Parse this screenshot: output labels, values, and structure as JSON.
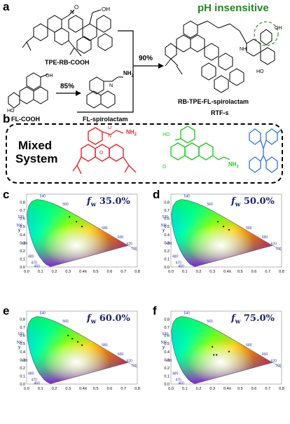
{
  "panels": {
    "a": "a",
    "b": "b",
    "c": "c",
    "d": "d",
    "e": "e",
    "f": "f"
  },
  "scheme": {
    "compound_tpe_rb": "TPE-RB-COOH",
    "compound_fl": "FL-COOH",
    "compound_fl_spiro": "FL-spirolactam",
    "product_name": "RB-TPE-FL-spirolactam",
    "product_short": "RTF-s",
    "yield_1": "85%",
    "yield_2": "90%",
    "ph_label": "pH insensitive",
    "nh2_label": "NH",
    "nh2_sub": "2",
    "oh_label": "OH",
    "nh_label": "NH"
  },
  "mixed": {
    "line1": "Mixed",
    "line2": "System",
    "nh2_red": "NH",
    "nh2_green": "NH",
    "sub": "2"
  },
  "cie": {
    "x_label": "x",
    "y_label": "y",
    "x_ticks": [
      "0.0",
      "0.1",
      "0.2",
      "0.3",
      "0.4",
      "0.5",
      "0.6",
      "0.7",
      "0.8"
    ],
    "y_ticks": [
      "0.0",
      "0.1",
      "0.2",
      "0.3",
      "0.4",
      "0.5",
      "0.6",
      "0.7",
      "0.8"
    ],
    "wavelengths": [
      "540",
      "560",
      "520",
      "580",
      "500",
      "600",
      "620",
      "700",
      "490",
      "480",
      "470",
      "460"
    ],
    "plots": [
      {
        "fw_prefix": "f",
        "fw_sub": "w",
        "value": "35.0%"
      },
      {
        "fw_prefix": "f",
        "fw_sub": "w",
        "value": "50.0%"
      },
      {
        "fw_prefix": "f",
        "fw_sub": "w",
        "value": "60.0%"
      },
      {
        "fw_prefix": "f",
        "fw_sub": "w",
        "value": "75.0%"
      }
    ]
  },
  "colors": {
    "red": "#e8262b",
    "green": "#22cc22",
    "blue": "#3a7fd8",
    "ph_green": "#1f8a1f",
    "fw_navy": "#1a2470",
    "tick_blue": "#2a3aa8"
  }
}
